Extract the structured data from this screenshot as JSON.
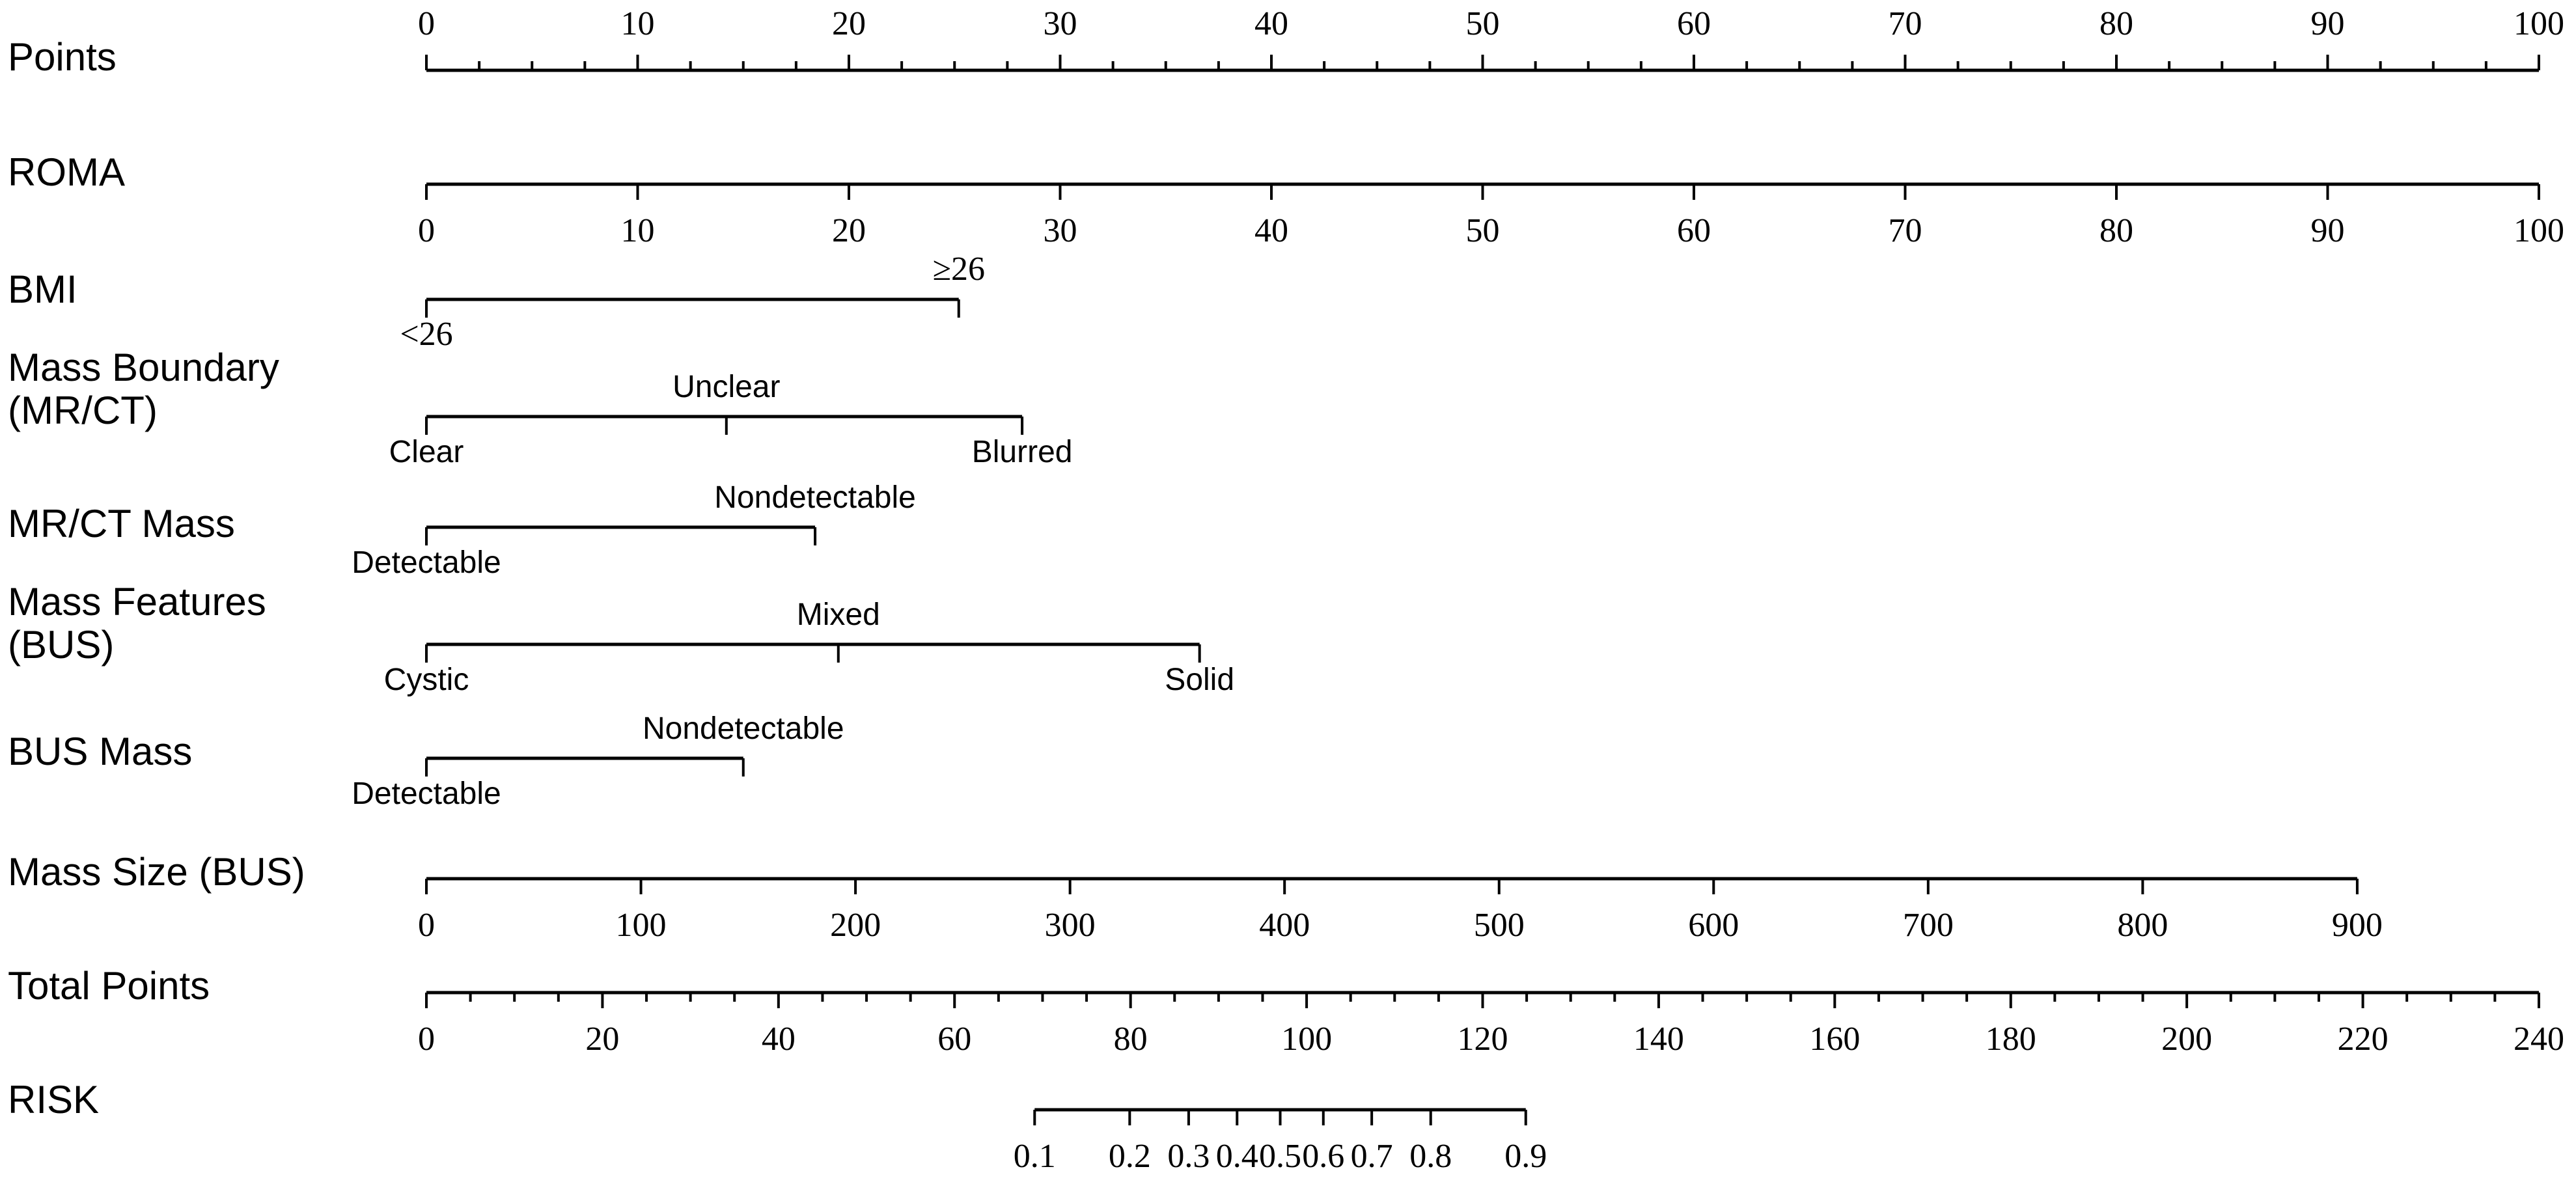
{
  "chart_data": {
    "type": "nomogram",
    "rows": [
      {
        "name": "Points",
        "kind": "numeric",
        "ticks": [
          0,
          10,
          20,
          30,
          40,
          50,
          60,
          70,
          80,
          90,
          100
        ],
        "minor_ticks": 4,
        "label_side": "above"
      },
      {
        "name": "ROMA",
        "kind": "numeric",
        "ticks": [
          0,
          10,
          20,
          30,
          40,
          50,
          60,
          70,
          80,
          90,
          100
        ],
        "points": [
          0,
          100
        ],
        "label_side": "below"
      },
      {
        "name": "BMI",
        "kind": "categorical",
        "categories": [
          {
            "label": "<26",
            "points": 0,
            "side": "below"
          },
          {
            "label": "≥26",
            "points": 25.2,
            "side": "above"
          }
        ]
      },
      {
        "name": "Mass Boundary\n(MR/CT)",
        "kind": "categorical",
        "categories": [
          {
            "label": "Clear",
            "points": 0,
            "side": "below"
          },
          {
            "label": "Unclear",
            "points": 14.2,
            "side": "above"
          },
          {
            "label": "Blurred",
            "points": 28.2,
            "side": "below"
          }
        ]
      },
      {
        "name": "MR/CT Mass",
        "kind": "categorical",
        "categories": [
          {
            "label": "Detectable",
            "points": 0,
            "side": "below"
          },
          {
            "label": "Nondetectable",
            "points": 18.4,
            "side": "above"
          }
        ]
      },
      {
        "name": "Mass Features\n(BUS)",
        "kind": "categorical",
        "categories": [
          {
            "label": "Cystic",
            "points": 0,
            "side": "below"
          },
          {
            "label": "Mixed",
            "points": 19.5,
            "side": "above"
          },
          {
            "label": "Solid",
            "points": 36.6,
            "side": "below"
          }
        ]
      },
      {
        "name": "BUS Mass",
        "kind": "categorical",
        "categories": [
          {
            "label": "Detectable",
            "points": 0,
            "side": "below"
          },
          {
            "label": "Nondetectable",
            "points": 15,
            "side": "above"
          }
        ]
      },
      {
        "name": "Mass Size (BUS)",
        "kind": "numeric",
        "ticks": [
          0,
          100,
          200,
          300,
          400,
          500,
          600,
          700,
          800,
          900
        ],
        "points": [
          0,
          91.4
        ],
        "label_side": "below"
      },
      {
        "name": "Total Points",
        "kind": "numeric",
        "ticks": [
          0,
          20,
          40,
          60,
          80,
          100,
          120,
          140,
          160,
          180,
          200,
          220,
          240
        ],
        "minor_ticks": 3,
        "label_side": "below"
      },
      {
        "name": "RISK",
        "kind": "numeric",
        "ticks": [
          0.1,
          0.2,
          0.3,
          0.4,
          0.5,
          0.6,
          0.7,
          0.8,
          0.9
        ],
        "tick_total_points": [
          69.1,
          79.9,
          86.6,
          92.1,
          97,
          101.9,
          107.4,
          114.1,
          124.9
        ],
        "label_side": "below"
      }
    ],
    "points_range": [
      0,
      100
    ],
    "total_points_range": [
      0,
      240
    ]
  }
}
